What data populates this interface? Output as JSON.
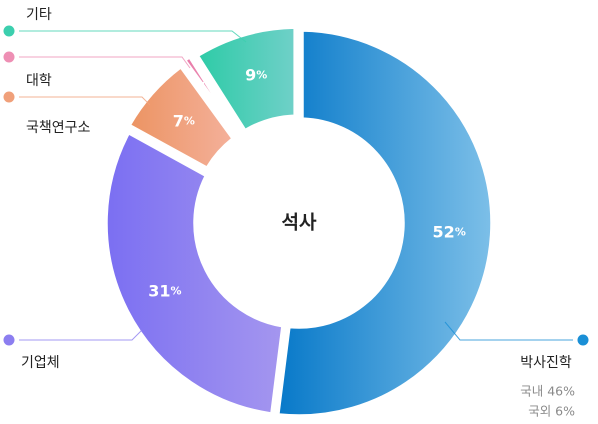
{
  "chart_data": {
    "type": "pie",
    "center_label": "석사",
    "unit": "%",
    "slices": [
      {
        "name": "박사진학",
        "value": 52,
        "color": "#1a8fd6",
        "sub": [
          "국내 46%",
          "국외 6%"
        ]
      },
      {
        "name": "기업체",
        "value": 31,
        "color": "#8c7ef0"
      },
      {
        "name": "국책연구소",
        "value": 7,
        "color": "#f0a07a"
      },
      {
        "name": "대학",
        "value": 1,
        "color": "#ee8fb4"
      },
      {
        "name": "기타",
        "value": 9,
        "color": "#3ccfae"
      }
    ]
  }
}
